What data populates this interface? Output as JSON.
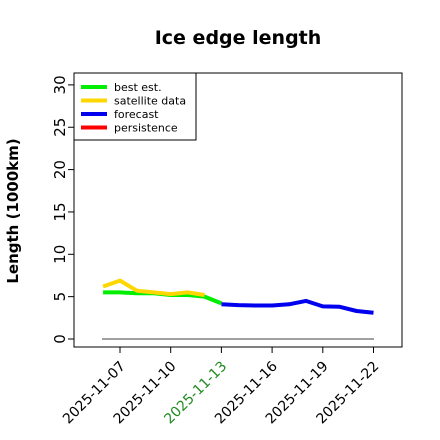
{
  "chart_data": {
    "type": "line",
    "title": "Ice edge length",
    "ylabel": "Length (1000km)",
    "xlabel": "",
    "ylim": [
      0,
      31
    ],
    "y_ticks": [
      "0",
      "5",
      "10",
      "15",
      "20",
      "25",
      "30"
    ],
    "x_ticks": [
      "2025-11-07",
      "2025-11-10",
      "2025-11-13",
      "2025-11-16",
      "2025-11-19",
      "2025-11-22"
    ],
    "highlight_tick": "2025-11-13",
    "highlight_color": "#228B22",
    "legend_position": "top-left",
    "grid": false,
    "baseline": {
      "y": 0,
      "color": "#808080"
    },
    "series": [
      {
        "name": "best est.",
        "color": "#00ee00",
        "x": [
          "2025-11-06",
          "2025-11-07",
          "2025-11-08",
          "2025-11-09",
          "2025-11-10",
          "2025-11-11",
          "2025-11-12",
          "2025-11-13"
        ],
        "y": [
          5.5,
          5.5,
          5.4,
          5.4,
          5.2,
          5.2,
          5.0,
          4.2
        ]
      },
      {
        "name": "satellite data",
        "color": "#ffd700",
        "x": [
          "2025-11-06",
          "2025-11-07",
          "2025-11-08",
          "2025-11-09",
          "2025-11-10",
          "2025-11-11",
          "2025-11-12"
        ],
        "y": [
          6.2,
          6.9,
          5.7,
          5.5,
          5.3,
          5.5,
          5.2
        ]
      },
      {
        "name": "forecast",
        "color": "#0000ee",
        "x": [
          "2025-11-13",
          "2025-11-14",
          "2025-11-15",
          "2025-11-16",
          "2025-11-17",
          "2025-11-18",
          "2025-11-19",
          "2025-11-20",
          "2025-11-21",
          "2025-11-22"
        ],
        "y": [
          4.1,
          4.0,
          3.95,
          3.95,
          4.1,
          4.5,
          3.85,
          3.8,
          3.3,
          3.1
        ]
      },
      {
        "name": "persistence",
        "color": "#ff0000",
        "x": [],
        "y": []
      }
    ]
  }
}
